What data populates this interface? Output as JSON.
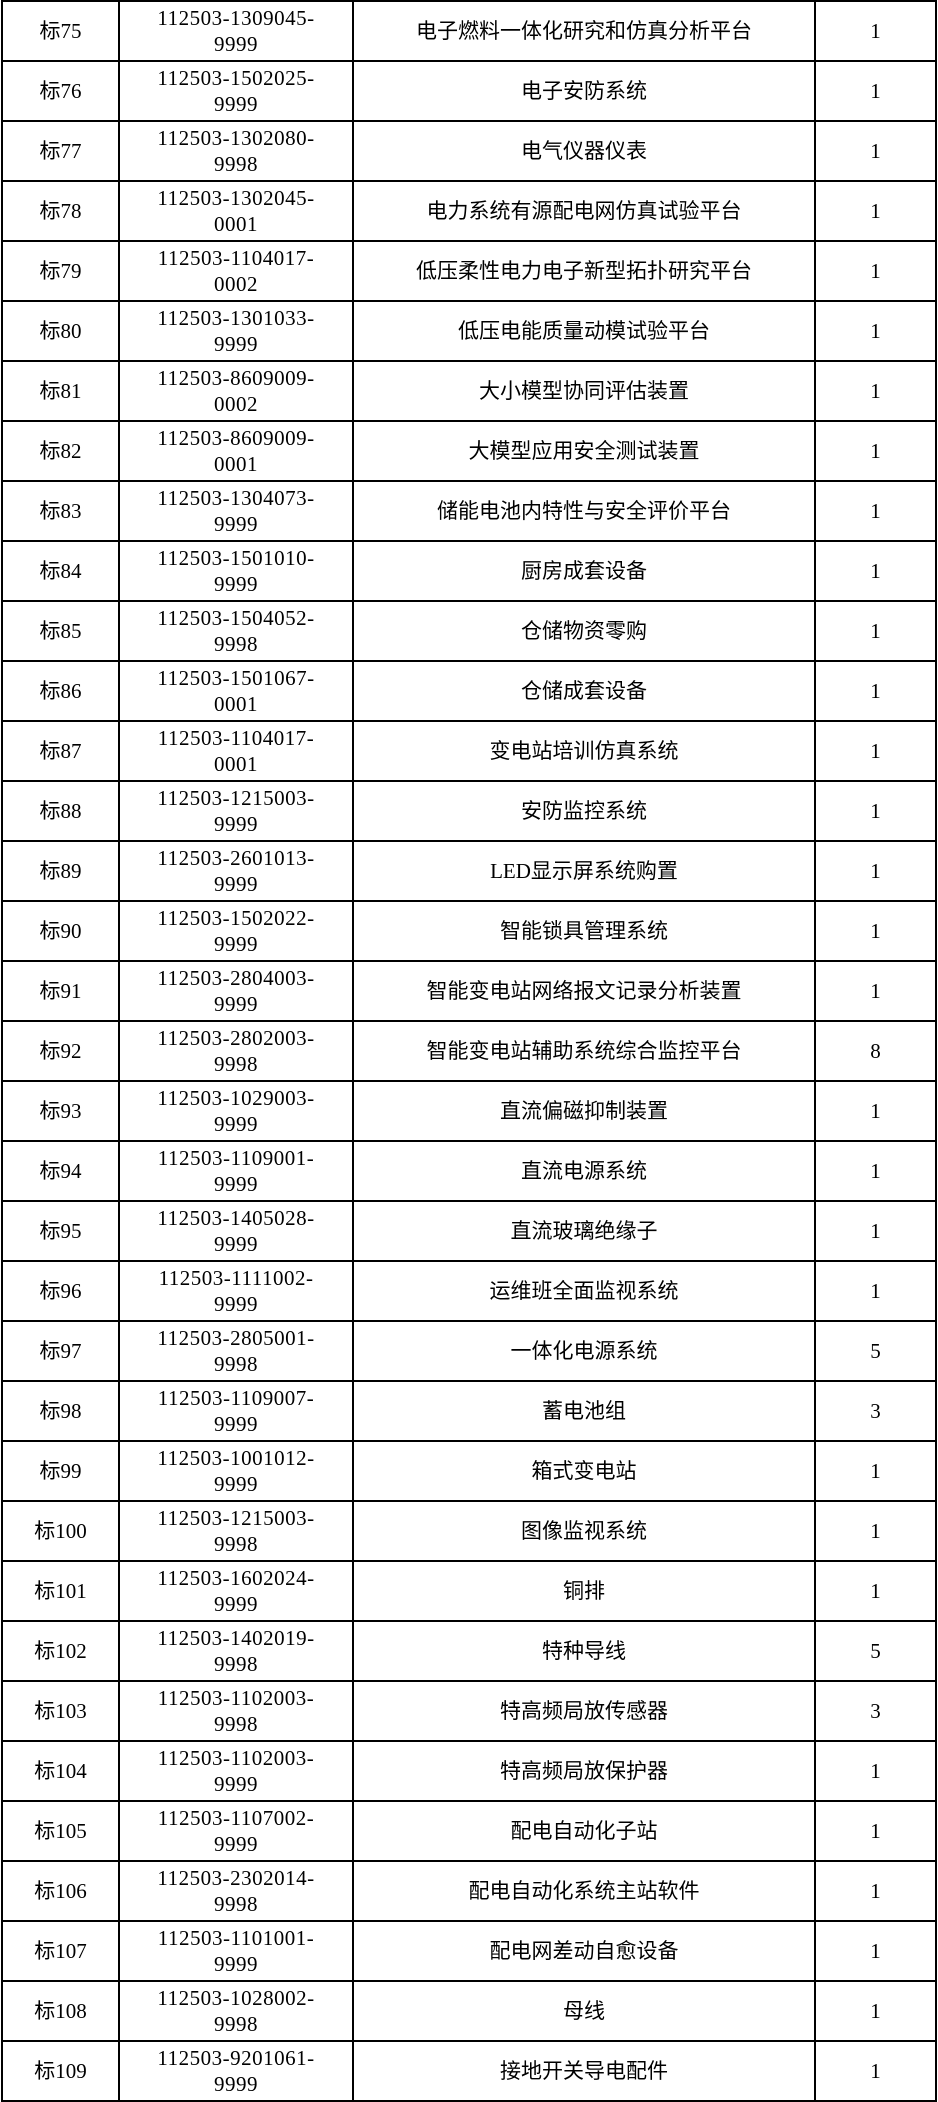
{
  "colors": {
    "background": "#ffffff",
    "text": "#000000",
    "border": "#000000"
  },
  "table": {
    "columns": [
      {
        "name": "bid-tag"
      },
      {
        "name": "material-code"
      },
      {
        "name": "material-name"
      },
      {
        "name": "quantity"
      }
    ],
    "rows": [
      {
        "tag": "标75",
        "code": "112503-1309045-9999",
        "name": "电子燃料一体化研究和仿真分析平台",
        "qty": "1"
      },
      {
        "tag": "标76",
        "code": "112503-1502025-9999",
        "name": "电子安防系统",
        "qty": "1"
      },
      {
        "tag": "标77",
        "code": "112503-1302080-9998",
        "name": "电气仪器仪表",
        "qty": "1"
      },
      {
        "tag": "标78",
        "code": "112503-1302045-0001",
        "name": "电力系统有源配电网仿真试验平台",
        "qty": "1"
      },
      {
        "tag": "标79",
        "code": "112503-1104017-0002",
        "name": "低压柔性电力电子新型拓扑研究平台",
        "qty": "1"
      },
      {
        "tag": "标80",
        "code": "112503-1301033-9999",
        "name": "低压电能质量动模试验平台",
        "qty": "1"
      },
      {
        "tag": "标81",
        "code": "112503-8609009-0002",
        "name": "大小模型协同评估装置",
        "qty": "1"
      },
      {
        "tag": "标82",
        "code": "112503-8609009-0001",
        "name": "大模型应用安全测试装置",
        "qty": "1"
      },
      {
        "tag": "标83",
        "code": "112503-1304073-9999",
        "name": "储能电池内特性与安全评价平台",
        "qty": "1"
      },
      {
        "tag": "标84",
        "code": "112503-1501010-9999",
        "name": "厨房成套设备",
        "qty": "1"
      },
      {
        "tag": "标85",
        "code": "112503-1504052-9998",
        "name": "仓储物资零购",
        "qty": "1"
      },
      {
        "tag": "标86",
        "code": "112503-1501067-0001",
        "name": "仓储成套设备",
        "qty": "1"
      },
      {
        "tag": "标87",
        "code": "112503-1104017-0001",
        "name": "变电站培训仿真系统",
        "qty": "1"
      },
      {
        "tag": "标88",
        "code": "112503-1215003-9999",
        "name": "安防监控系统",
        "qty": "1"
      },
      {
        "tag": "标89",
        "code": "112503-2601013-9999",
        "name": "LED显示屏系统购置",
        "qty": "1"
      },
      {
        "tag": "标90",
        "code": "112503-1502022-9999",
        "name": "智能锁具管理系统",
        "qty": "1"
      },
      {
        "tag": "标91",
        "code": "112503-2804003-9999",
        "name": "智能变电站网络报文记录分析装置",
        "qty": "1"
      },
      {
        "tag": "标92",
        "code": "112503-2802003-9998",
        "name": "智能变电站辅助系统综合监控平台",
        "qty": "8"
      },
      {
        "tag": "标93",
        "code": "112503-1029003-9999",
        "name": "直流偏磁抑制装置",
        "qty": "1"
      },
      {
        "tag": "标94",
        "code": "112503-1109001-9999",
        "name": "直流电源系统",
        "qty": "1"
      },
      {
        "tag": "标95",
        "code": "112503-1405028-9999",
        "name": "直流玻璃绝缘子",
        "qty": "1"
      },
      {
        "tag": "标96",
        "code": "112503-1111002-9999",
        "name": "运维班全面监视系统",
        "qty": "1"
      },
      {
        "tag": "标97",
        "code": "112503-2805001-9998",
        "name": "一体化电源系统",
        "qty": "5"
      },
      {
        "tag": "标98",
        "code": "112503-1109007-9999",
        "name": "蓄电池组",
        "qty": "3"
      },
      {
        "tag": "标99",
        "code": "112503-1001012-9999",
        "name": "箱式变电站",
        "qty": "1"
      },
      {
        "tag": "标100",
        "code": "112503-1215003-9998",
        "name": "图像监视系统",
        "qty": "1"
      },
      {
        "tag": "标101",
        "code": "112503-1602024-9999",
        "name": "铜排",
        "qty": "1"
      },
      {
        "tag": "标102",
        "code": "112503-1402019-9998",
        "name": "特种导线",
        "qty": "5"
      },
      {
        "tag": "标103",
        "code": "112503-1102003-9998",
        "name": "特高频局放传感器",
        "qty": "3"
      },
      {
        "tag": "标104",
        "code": "112503-1102003-9999",
        "name": "特高频局放保护器",
        "qty": "1"
      },
      {
        "tag": "标105",
        "code": "112503-1107002-9999",
        "name": "配电自动化子站",
        "qty": "1"
      },
      {
        "tag": "标106",
        "code": "112503-2302014-9998",
        "name": "配电自动化系统主站软件",
        "qty": "1"
      },
      {
        "tag": "标107",
        "code": "112503-1101001-9999",
        "name": "配电网差动自愈设备",
        "qty": "1"
      },
      {
        "tag": "标108",
        "code": "112503-1028002-9998",
        "name": "母线",
        "qty": "1"
      },
      {
        "tag": "标109",
        "code": "112503-9201061-9999",
        "name": "接地开关导电配件",
        "qty": "1"
      }
    ]
  }
}
